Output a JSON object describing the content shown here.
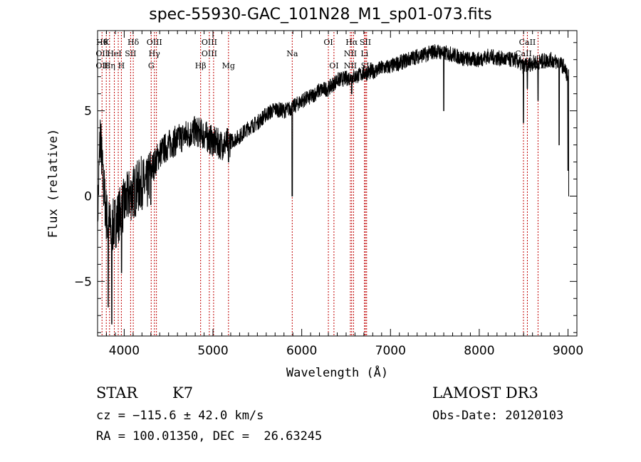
{
  "chart_data": {
    "type": "line",
    "title": "spec-55930-GAC_101N28_M1_sp01-073.fits",
    "xlabel": "Wavelength (Å)",
    "ylabel": "Flux (relative)",
    "xlim": [
      3700,
      9100
    ],
    "ylim": [
      -8.2,
      9.7
    ],
    "xticks": [
      4000,
      5000,
      6000,
      7000,
      8000,
      9000
    ],
    "yticks": [
      -5,
      0,
      5
    ],
    "series": [
      {
        "name": "spectrum",
        "anchors": [
          [
            3700,
            -1.5
          ],
          [
            3730,
            3.8
          ],
          [
            3760,
            1.0
          ],
          [
            3800,
            -1.2
          ],
          [
            3850,
            -2.0
          ],
          [
            3900,
            -1.5
          ],
          [
            3950,
            -1.0
          ],
          [
            4000,
            -0.5
          ],
          [
            4050,
            0.0
          ],
          [
            4100,
            0.2
          ],
          [
            4150,
            0.5
          ],
          [
            4200,
            0.8
          ],
          [
            4250,
            0.5
          ],
          [
            4300,
            1.5
          ],
          [
            4350,
            2.0
          ],
          [
            4400,
            2.5
          ],
          [
            4500,
            3.0
          ],
          [
            4600,
            3.3
          ],
          [
            4700,
            3.6
          ],
          [
            4800,
            3.8
          ],
          [
            4900,
            3.6
          ],
          [
            5000,
            3.2
          ],
          [
            5100,
            3.0
          ],
          [
            5200,
            3.2
          ],
          [
            5300,
            3.5
          ],
          [
            5400,
            4.0
          ],
          [
            5500,
            4.3
          ],
          [
            5600,
            4.8
          ],
          [
            5700,
            5.1
          ],
          [
            5800,
            5.0
          ],
          [
            5900,
            5.2
          ],
          [
            6000,
            5.6
          ],
          [
            6100,
            5.8
          ],
          [
            6200,
            6.2
          ],
          [
            6300,
            6.3
          ],
          [
            6400,
            6.8
          ],
          [
            6500,
            6.9
          ],
          [
            6600,
            7.0
          ],
          [
            6700,
            7.2
          ],
          [
            6800,
            7.3
          ],
          [
            6900,
            7.5
          ],
          [
            7000,
            7.6
          ],
          [
            7100,
            7.8
          ],
          [
            7200,
            8.0
          ],
          [
            7300,
            8.2
          ],
          [
            7400,
            8.3
          ],
          [
            7500,
            8.5
          ],
          [
            7600,
            8.4
          ],
          [
            7700,
            8.3
          ],
          [
            7800,
            8.1
          ],
          [
            7900,
            8.0
          ],
          [
            8000,
            8.0
          ],
          [
            8100,
            8.2
          ],
          [
            8200,
            8.1
          ],
          [
            8300,
            8.0
          ],
          [
            8400,
            8.0
          ],
          [
            8500,
            7.6
          ],
          [
            8600,
            7.8
          ],
          [
            8700,
            7.9
          ],
          [
            8800,
            8.0
          ],
          [
            8900,
            7.8
          ],
          [
            8950,
            7.6
          ],
          [
            9000,
            7.0
          ]
        ],
        "absorption": [
          [
            3820,
            -6.5
          ],
          [
            3860,
            -7.5
          ],
          [
            3970,
            -4.5
          ],
          [
            4300,
            -0.5
          ],
          [
            5175,
            2.0
          ],
          [
            5893,
            0.0
          ],
          [
            6563,
            6.0
          ],
          [
            7600,
            5.0
          ],
          [
            8498,
            4.3
          ],
          [
            8542,
            6.3
          ],
          [
            8662,
            5.6
          ],
          [
            8900,
            3.0
          ],
          [
            9000,
            1.5
          ],
          [
            9010,
            0.0
          ]
        ]
      }
    ],
    "lines": [
      {
        "wl": 3750,
        "top": "Hθ",
        "mid": "OII",
        "low": "OII"
      },
      {
        "wl": 3798,
        "top": "K",
        "mid": "",
        "low": ""
      },
      {
        "wl": 3835,
        "top": "",
        "mid": "",
        "low": "Hη"
      },
      {
        "wl": 3889,
        "top": "",
        "mid": "HeI",
        "low": ""
      },
      {
        "wl": 3933,
        "top": "",
        "mid": "",
        "low": ""
      },
      {
        "wl": 3968,
        "top": "",
        "mid": "",
        "low": "H"
      },
      {
        "wl": 4072,
        "top": "",
        "mid": "SII",
        "low": ""
      },
      {
        "wl": 4102,
        "top": "Hδ",
        "mid": "",
        "low": ""
      },
      {
        "wl": 4304,
        "top": "",
        "mid": "",
        "low": "G"
      },
      {
        "wl": 4340,
        "top": "OIII",
        "mid": "Hγ",
        "low": ""
      },
      {
        "wl": 4363,
        "top": "",
        "mid": "",
        "low": ""
      },
      {
        "wl": 4861,
        "top": "",
        "mid": "",
        "low": "Hβ"
      },
      {
        "wl": 4959,
        "top": "OIII",
        "mid": "OIII",
        "low": ""
      },
      {
        "wl": 5007,
        "top": "",
        "mid": "",
        "low": ""
      },
      {
        "wl": 5175,
        "top": "",
        "mid": "",
        "low": "Mg"
      },
      {
        "wl": 5893,
        "top": "",
        "mid": "Na",
        "low": ""
      },
      {
        "wl": 6300,
        "top": "OI",
        "mid": "",
        "low": ""
      },
      {
        "wl": 6363,
        "top": "",
        "mid": "",
        "low": "OI"
      },
      {
        "wl": 6548,
        "top": "",
        "mid": "NII",
        "low": "NII"
      },
      {
        "wl": 6563,
        "top": "Hα",
        "mid": "",
        "low": ""
      },
      {
        "wl": 6584,
        "top": "",
        "mid": "",
        "low": ""
      },
      {
        "wl": 6707,
        "top": "",
        "mid": "Li",
        "low": ""
      },
      {
        "wl": 6717,
        "top": "SII",
        "mid": "",
        "low": ""
      },
      {
        "wl": 6731,
        "top": "",
        "mid": "",
        "low": "SII"
      },
      {
        "wl": 8498,
        "top": "",
        "mid": "CaII",
        "low": ""
      },
      {
        "wl": 8542,
        "top": "CaII",
        "mid": "",
        "low": ""
      },
      {
        "wl": 8662,
        "top": "",
        "mid": "",
        "low": "CaII"
      }
    ]
  },
  "info": {
    "class_label": "STAR",
    "subclass": "K7",
    "survey": "LAMOST DR3",
    "cz": "cz = −115.6 ± 42.0 km/s",
    "obs_date": "Obs-Date: 20120103",
    "coords": "RA = 100.01350, DEC =  26.63245"
  }
}
